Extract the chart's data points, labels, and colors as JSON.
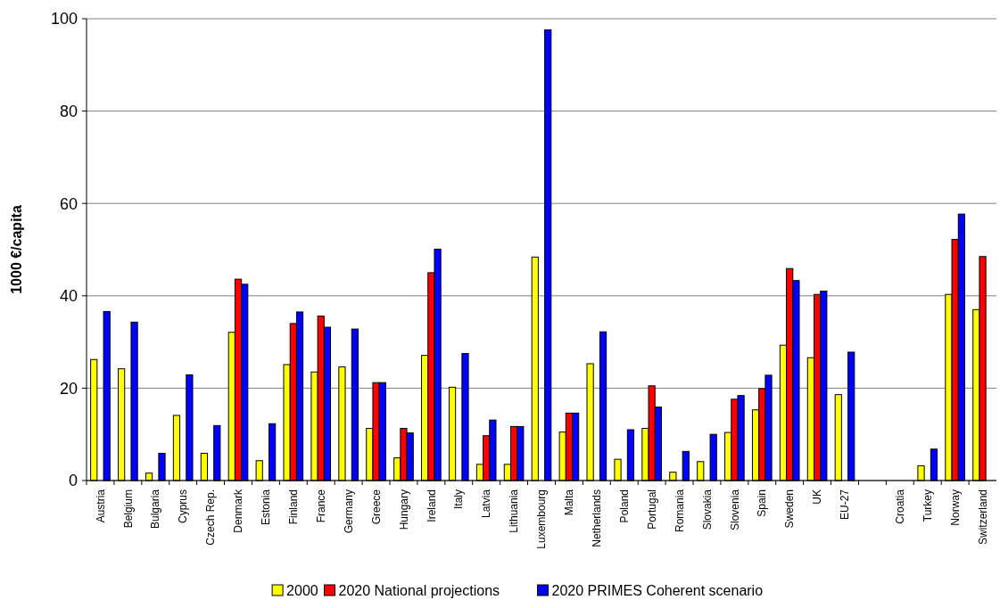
{
  "chart_data": {
    "type": "bar",
    "ylabel": "1000 €/capita",
    "categories": [
      "Austria",
      "Belgium",
      "Bulgaria",
      "Cyprus",
      "Czech Rep.",
      "Denmark",
      "Estonia",
      "Finland",
      "France",
      "Germany",
      "Greece",
      "Hungary",
      "Ireland",
      "Italy",
      "Latvia",
      "Lithuania",
      "Luxembourg",
      "Malta",
      "Netherlands",
      "Poland",
      "Portugal",
      "Romania",
      "Slovakia",
      "Slovenia",
      "Spain",
      "Sweden",
      "UK",
      "EU-27",
      null,
      "Croatia",
      "Turkey",
      "Norway",
      "Switzerland"
    ],
    "series": [
      {
        "name": "2000",
        "color": "#ffff00",
        "values": [
          26.2,
          24.2,
          1.6,
          14.1,
          5.9,
          32.1,
          4.3,
          25.1,
          23.5,
          24.6,
          11.3,
          4.9,
          27.1,
          20.2,
          3.5,
          3.5,
          48.4,
          10.5,
          25.3,
          4.6,
          11.3,
          1.8,
          4.1,
          10.4,
          15.3,
          29.3,
          26.6,
          18.6,
          null,
          null,
          3.2,
          40.3,
          37.0
        ]
      },
      {
        "name": "2020 National projections",
        "color": "#ff0000",
        "values": [
          null,
          null,
          null,
          null,
          null,
          43.6,
          null,
          34.0,
          35.6,
          null,
          21.2,
          11.3,
          45.0,
          null,
          9.7,
          11.7,
          null,
          14.6,
          null,
          null,
          20.5,
          null,
          null,
          17.6,
          19.9,
          45.9,
          40.3,
          null,
          null,
          null,
          null,
          52.2,
          48.5
        ]
      },
      {
        "name": "2020 PRIMES Coherent scenario",
        "color": "#0000ff",
        "values": [
          36.6,
          34.3,
          5.9,
          22.9,
          11.9,
          42.5,
          12.3,
          36.5,
          33.2,
          32.8,
          21.2,
          10.3,
          50.1,
          27.5,
          13.1,
          11.7,
          97.6,
          14.6,
          32.2,
          11.0,
          15.9,
          6.3,
          10.0,
          18.4,
          22.8,
          43.3,
          41.0,
          27.8,
          null,
          null,
          6.8,
          57.7,
          null
        ]
      }
    ],
    "ylim": [
      0,
      100
    ],
    "yticks": [
      0,
      20,
      40,
      60,
      80,
      100
    ],
    "grid": "y",
    "legend": "bottom"
  }
}
